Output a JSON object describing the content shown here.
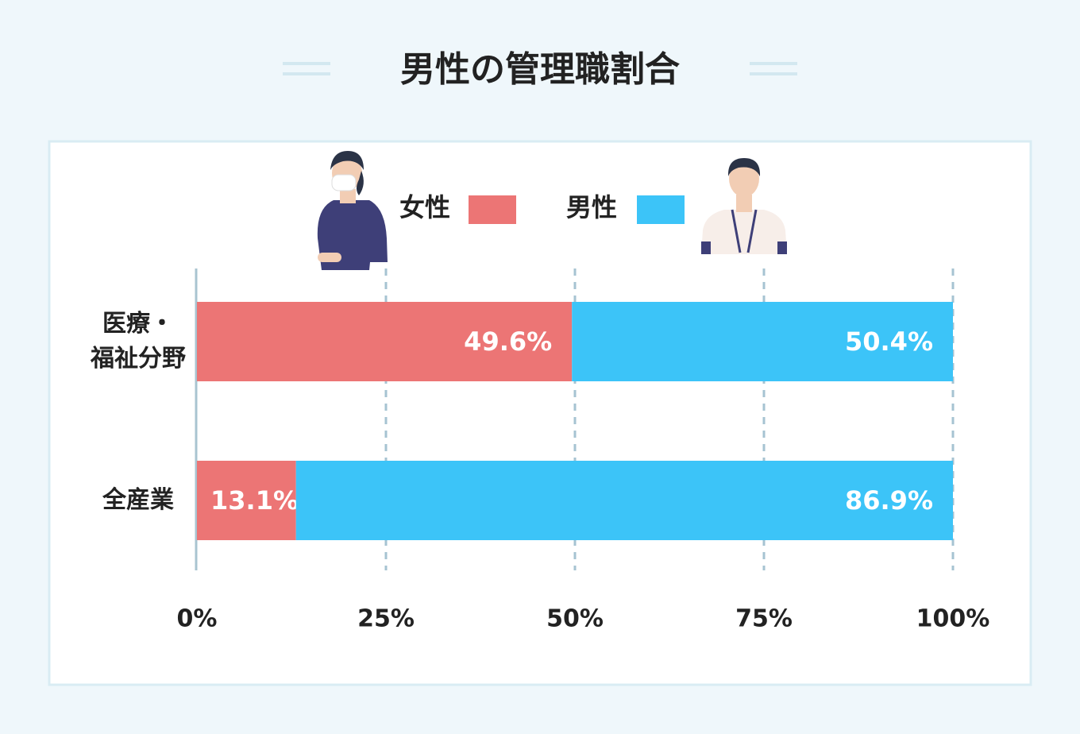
{
  "chart_data": {
    "type": "stacked-barh",
    "title": "男性の管理職割合",
    "categories": [
      "医療・\n福祉分野",
      "全産業"
    ],
    "series": [
      {
        "name": "女性",
        "color": "#ec7575",
        "values": [
          49.6,
          13.1
        ],
        "value_labels": [
          "49.6%",
          "13.1%"
        ]
      },
      {
        "name": "男性",
        "color": "#3cc4f8",
        "values": [
          50.4,
          86.9
        ],
        "value_labels": [
          "50.4%",
          "86.9%"
        ]
      }
    ],
    "xlim": [
      0,
      100
    ],
    "xticks": [
      {
        "value": 0,
        "label": "0%"
      },
      {
        "value": 25,
        "label": "25%"
      },
      {
        "value": 50,
        "label": "50%"
      },
      {
        "value": 75,
        "label": "75%"
      },
      {
        "value": 100,
        "label": "100%"
      }
    ],
    "grid": true
  }
}
